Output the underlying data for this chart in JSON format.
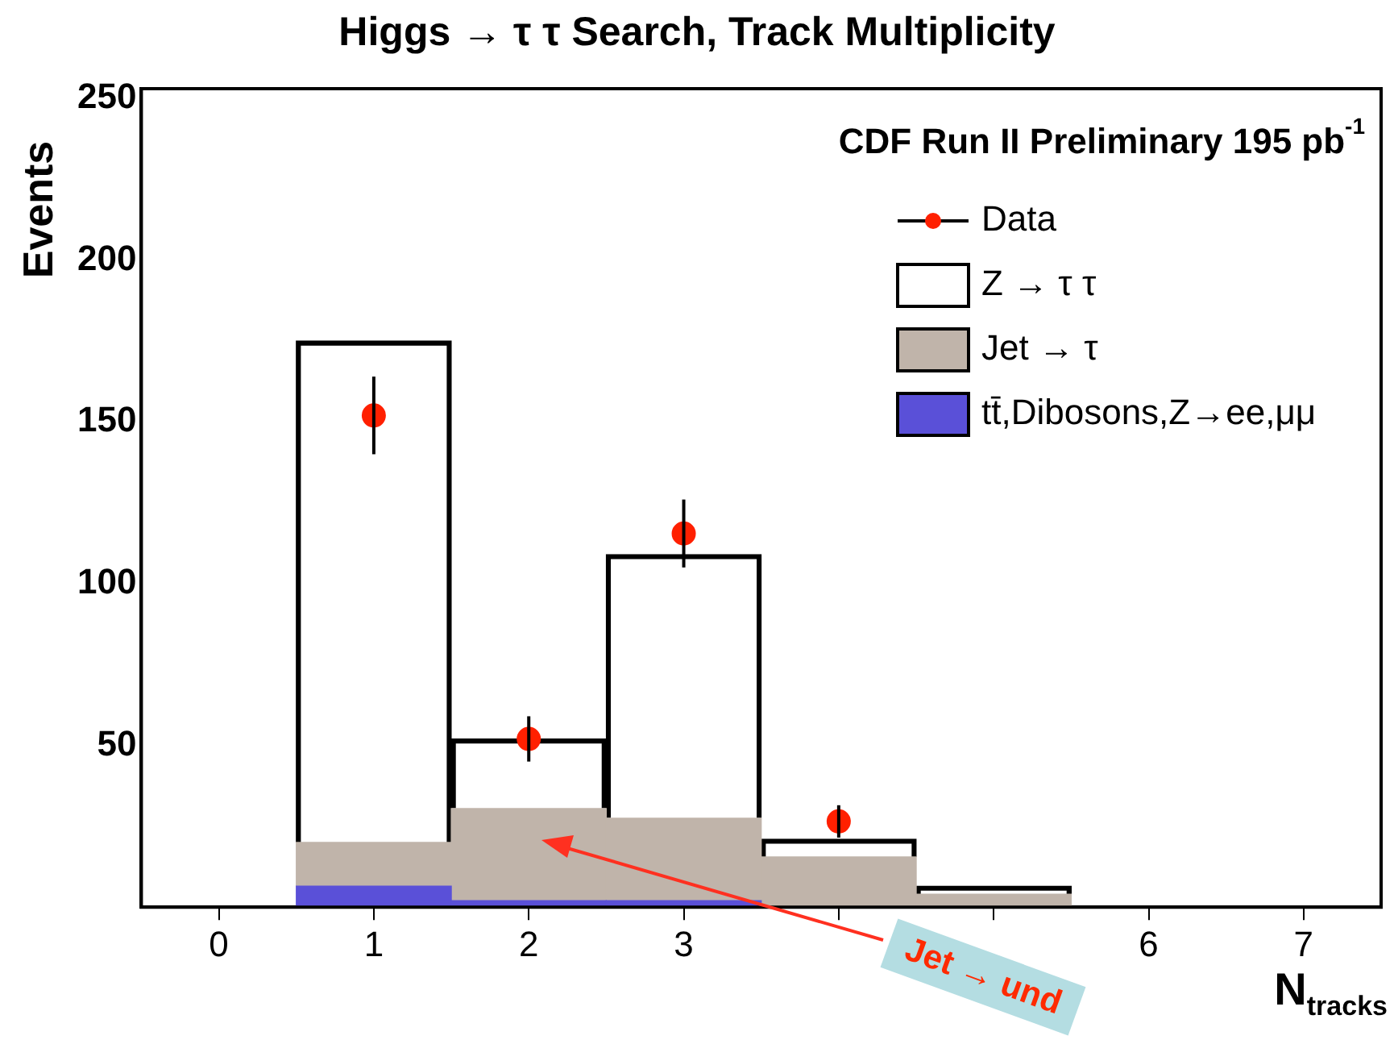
{
  "chart_data": {
    "type": "bar",
    "title": "Higgs → τ τ Search, Track Multiplicity",
    "xlabel": "N$_{tracks}$",
    "ylabel": "Events",
    "categories": [
      "0",
      "1",
      "2",
      "3",
      null,
      null,
      "6",
      "7"
    ],
    "stacked": true,
    "series": [
      {
        "name": "tt̄,Dibosons,Z→ee,μμ",
        "color": "#5a50d8",
        "values": [
          0,
          6.5,
          2,
          2,
          0,
          0,
          0,
          0
        ]
      },
      {
        "name": "Jet → τ",
        "color": "#c0b4aa",
        "values": [
          0,
          13.5,
          28.5,
          25.5,
          15.5,
          4,
          0,
          0
        ]
      },
      {
        "name": "Z → τ τ",
        "color": "#000000",
        "values": [
          0,
          155,
          21.5,
          81.5,
          5.5,
          2.5,
          0,
          0
        ]
      },
      {
        "name": "Data",
        "type": "scatter",
        "color": "#ff2000",
        "x": [
          "0",
          "1",
          "2",
          "3",
          null,
          null,
          "6",
          "7"
        ],
        "values": [
          null,
          152,
          52,
          115.5,
          26.5,
          null,
          null,
          null
        ],
        "errors": [
          null,
          12,
          7,
          10.5,
          5,
          null,
          null,
          null
        ],
        "marker": "circle"
      }
    ],
    "ylim": [
      0,
      253
    ],
    "yticks": [
      50,
      100,
      150,
      200,
      250
    ],
    "grid": false,
    "legend": "top right",
    "annotations": [
      "CDF Run II Preliminary 195 pb$^{-1}$",
      "Jet → und"
    ]
  }
}
